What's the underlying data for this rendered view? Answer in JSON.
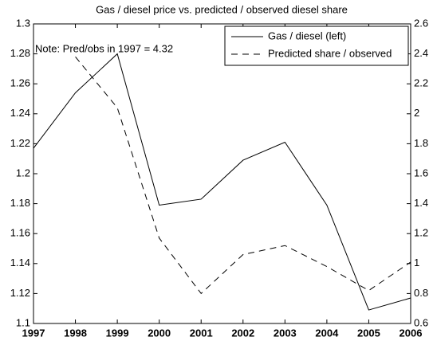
{
  "chart_data": {
    "type": "line",
    "title": "Gas / diesel price vs. predicted / observed diesel share",
    "annotation": "Note: Pred/obs in 1997 = 4.32",
    "x": [
      1997,
      1998,
      1999,
      2000,
      2001,
      2002,
      2003,
      2004,
      2005,
      2006
    ],
    "xlim": [
      1997,
      2006
    ],
    "xticks": [
      1997,
      1998,
      1999,
      2000,
      2001,
      2002,
      2003,
      2004,
      2005,
      2006
    ],
    "ylim": [
      1.1,
      1.3
    ],
    "yticks": [
      1.1,
      1.12,
      1.14,
      1.16,
      1.18,
      1.2,
      1.22,
      1.24,
      1.26,
      1.28,
      1.3
    ],
    "y2lim": [
      0.6,
      2.6
    ],
    "y2ticks": [
      0.6,
      0.8,
      1,
      1.2,
      1.4,
      1.6,
      1.8,
      2,
      2.2,
      2.4,
      2.6
    ],
    "legend": "upper right",
    "series": [
      {
        "name": "Gas / diesel (left)",
        "color": "#000000",
        "dash": "solid",
        "values": [
          1.217,
          1.254,
          1.28,
          1.179,
          1.183,
          1.209,
          1.221,
          1.179,
          1.109,
          1.117
        ]
      },
      {
        "name": "Predicted share / observed",
        "color": "#000000",
        "dash": "dashed",
        "axis": "y2",
        "values": [
          null,
          2.38,
          2.04,
          1.17,
          0.8,
          1.06,
          1.12,
          0.98,
          0.82,
          1.01
        ]
      }
    ]
  }
}
